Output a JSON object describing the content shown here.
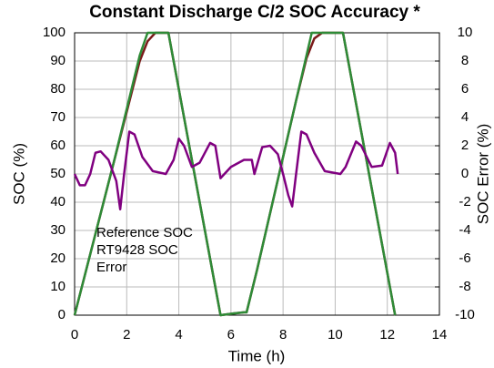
{
  "chart_data": {
    "type": "line",
    "title": "Constant Discharge C/2 SOC Accuracy *",
    "xlabel": "Time (h)",
    "ylabel": "SOC (%)",
    "y2label": "SOC Error (%)",
    "xlim": [
      0,
      14
    ],
    "xticks": [
      0,
      2,
      4,
      6,
      8,
      10,
      12,
      14
    ],
    "ylim": [
      0,
      100
    ],
    "yticks": [
      0,
      10,
      20,
      30,
      40,
      50,
      60,
      70,
      80,
      90,
      100
    ],
    "y2lim": [
      -10,
      10
    ],
    "y2ticks": [
      -10,
      -8,
      -6,
      -4,
      -2,
      0,
      2,
      4,
      6,
      8,
      10
    ],
    "grid": true,
    "legend": "lower left",
    "series": [
      {
        "name": "Reference  SOC",
        "color": "#7b1a1a",
        "x": [
          0,
          0.5,
          1,
          1.5,
          2,
          2.5,
          2.8,
          3.1,
          3.6,
          4,
          4.5,
          5,
          5.5,
          5.6,
          6,
          6.5,
          6.6,
          7,
          7.5,
          8,
          8.5,
          8.9,
          9.2,
          9.5,
          10.3,
          10.5,
          11,
          11.5,
          12,
          12.3
        ],
        "values": [
          0,
          18,
          36,
          54,
          72,
          90,
          97,
          100,
          100,
          80,
          55,
          30,
          5,
          0,
          0.5,
          1,
          1,
          16,
          36,
          56,
          76,
          91,
          98,
          100,
          100,
          90,
          65,
          40,
          15,
          0
        ]
      },
      {
        "name": "RT9428 SOC",
        "color": "#2e8b37",
        "x": [
          0,
          0.5,
          1,
          1.5,
          2,
          2.5,
          2.8,
          3.6,
          4,
          4.5,
          5,
          5.5,
          5.6,
          6,
          6.5,
          6.6,
          7,
          7.5,
          8,
          8.5,
          8.9,
          9.1,
          10.3,
          10.5,
          11,
          11.5,
          12,
          12.3
        ],
        "values": [
          0,
          18,
          36,
          54,
          73,
          92,
          100,
          100,
          80,
          55,
          30,
          5,
          0,
          0.5,
          1,
          1,
          16,
          36,
          56,
          76,
          92,
          100,
          100,
          90,
          65,
          40,
          15,
          0
        ]
      },
      {
        "name": "Error",
        "color": "#800080",
        "axis": "y2",
        "x": [
          0,
          0.2,
          0.4,
          0.6,
          0.8,
          1.0,
          1.3,
          1.6,
          1.75,
          1.9,
          2.1,
          2.3,
          2.6,
          3,
          3.5,
          3.8,
          4.0,
          4.2,
          4.5,
          4.8,
          5.2,
          5.4,
          5.6,
          6,
          6.5,
          6.8,
          6.9,
          7.2,
          7.5,
          7.8,
          8.0,
          8.2,
          8.35,
          8.5,
          8.7,
          8.9,
          9.2,
          9.6,
          10.2,
          10.4,
          10.8,
          11,
          11.4,
          11.8,
          12.1,
          12.3,
          12.4
        ],
        "values": [
          0,
          -0.8,
          -0.8,
          0,
          1.5,
          1.6,
          1,
          -0.5,
          -2.5,
          0,
          3,
          2.8,
          1.2,
          0.2,
          0,
          1,
          2.5,
          2,
          0.5,
          0.8,
          2.2,
          2,
          -0.3,
          0.5,
          1,
          1,
          0,
          1.9,
          2,
          1.4,
          0,
          -1.5,
          -2.3,
          0,
          3,
          2.8,
          1.5,
          0.2,
          0,
          0.5,
          2.3,
          2,
          0.5,
          0.6,
          2.2,
          1.5,
          0
        ]
      }
    ]
  }
}
